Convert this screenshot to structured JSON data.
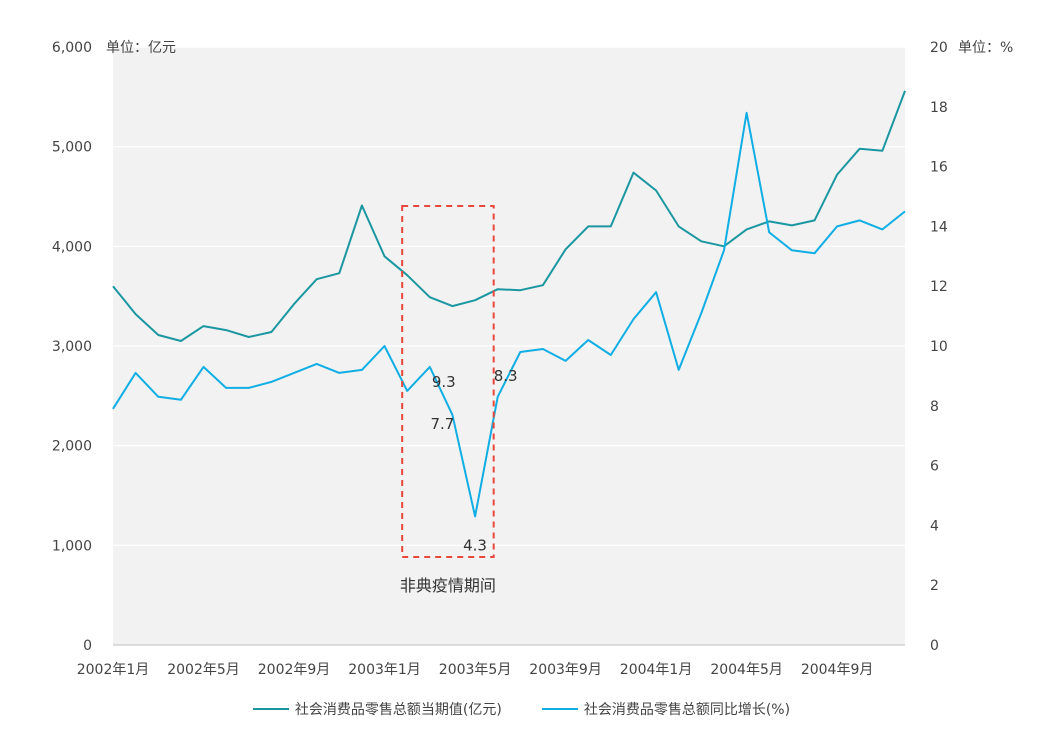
{
  "chart_data": {
    "type": "line",
    "title": "",
    "left_unit": "单位：亿元",
    "right_unit": "单位：%",
    "y_left": {
      "min": 0,
      "max": 6000,
      "ticks": [
        "0",
        "1,000",
        "2,000",
        "3,000",
        "4,000",
        "5,000",
        "6,000"
      ]
    },
    "y_right": {
      "min": 0,
      "max": 20,
      "ticks": [
        "0",
        "2",
        "4",
        "6",
        "8",
        "10",
        "12",
        "14",
        "16",
        "18",
        "20"
      ]
    },
    "x_tick_labels": [
      "2002年1月",
      "2002年5月",
      "2002年9月",
      "2003年1月",
      "2003年5月",
      "2003年9月",
      "2004年1月",
      "2004年5月",
      "2004年9月"
    ],
    "x_count": 36,
    "grid": "horizontal",
    "legend_position": "bottom",
    "series": [
      {
        "name": "社会消费品零售总额当期值(亿元)",
        "axis": "left",
        "color": "#1b97a1",
        "values": [
          3600,
          3320,
          3110,
          3050,
          3200,
          3160,
          3090,
          3140,
          3420,
          3670,
          3730,
          4410,
          3900,
          3710,
          3490,
          3400,
          3460,
          3570,
          3560,
          3610,
          3970,
          4200,
          4200,
          4740,
          4560,
          4200,
          4050,
          4000,
          4170,
          4250,
          4210,
          4260,
          4720,
          4980,
          4960,
          5560
        ]
      },
      {
        "name": "社会消费品零售总额同比增长(%)",
        "axis": "right",
        "color": "#10aee4",
        "values": [
          7.9,
          9.1,
          8.3,
          8.2,
          9.3,
          8.6,
          8.6,
          8.8,
          9.1,
          9.4,
          9.1,
          9.2,
          10.0,
          8.5,
          9.3,
          7.7,
          4.3,
          8.3,
          9.8,
          9.9,
          9.5,
          10.2,
          9.7,
          10.9,
          11.8,
          9.2,
          11.1,
          13.2,
          17.8,
          13.8,
          13.2,
          13.1,
          14.0,
          14.2,
          13.9,
          14.5
        ]
      }
    ],
    "data_labels": [
      {
        "text": "9.3",
        "series": 1,
        "index": 14
      },
      {
        "text": "7.7",
        "series": 1,
        "index": 15
      },
      {
        "text": "4.3",
        "series": 1,
        "index": 16
      },
      {
        "text": "8.3",
        "series": 1,
        "index": 17
      }
    ],
    "highlight": {
      "label": "非典疫情期间",
      "from_index": 13,
      "to_index": 17,
      "color": "#e8483c"
    }
  }
}
